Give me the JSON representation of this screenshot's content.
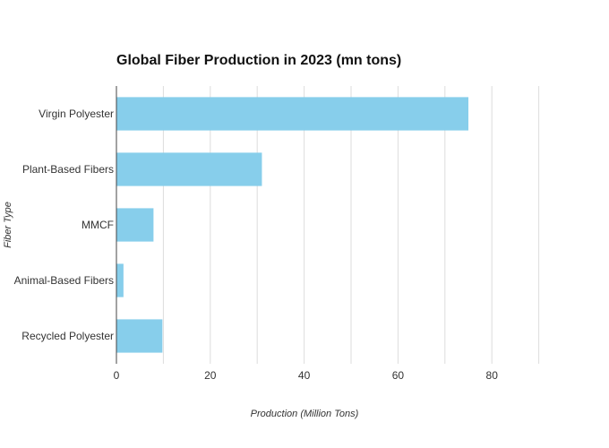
{
  "chart_data": {
    "type": "bar",
    "orientation": "horizontal",
    "title": "Global Fiber Production in 2023 (mn tons)",
    "xlabel": "Production (Million Tons)",
    "ylabel": "Fiber Type",
    "categories": [
      "Virgin Polyester",
      "Plant-Based Fibers",
      "MMCF",
      "Animal-Based Fibers",
      "Recycled Polyester"
    ],
    "values": [
      75,
      31,
      7.9,
      1.5,
      9.8
    ],
    "xlim": [
      0,
      100
    ],
    "xticks": [
      0,
      20,
      40,
      60,
      80
    ],
    "xtick_labels": [
      "0",
      "20",
      "40",
      "60",
      "80"
    ],
    "grid": true,
    "bar_color": "#87ceeb"
  }
}
